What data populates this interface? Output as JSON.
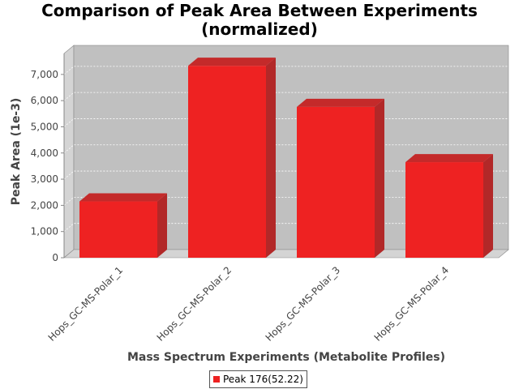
{
  "chart_data": {
    "type": "bar",
    "title_lines": [
      "Comparison of Peak Area Between Experiments",
      "(normalized)"
    ],
    "xlabel": "Mass Spectrum Experiments (Metabolite Profiles)",
    "ylabel": "Peak Area (1e-3)",
    "categories": [
      "Hops_GC-MS-Polar_1",
      "Hops_GC-MS-Polar_2",
      "Hops_GC-MS-Polar_3",
      "Hops_GC-MS-Polar_4"
    ],
    "series": [
      {
        "name": "Peak 176(52.22)",
        "values": [
          2150,
          7330,
          5760,
          3650
        ],
        "color": "#ee2222"
      }
    ],
    "yticks": [
      0,
      1000,
      2000,
      3000,
      4000,
      5000,
      6000,
      7000
    ],
    "ytick_labels": [
      "0",
      "1,000",
      "2,000",
      "3,000",
      "4,000",
      "5,000",
      "6,000",
      "7,000"
    ],
    "ylim": [
      0,
      7800
    ],
    "grid": true,
    "style": "3d",
    "legend_position": "bottom",
    "colors": {
      "plot_background": "#c0c0c0",
      "bar": "#ee2222",
      "bar_top": "#c42a2a",
      "bar_side": "#b22828"
    }
  }
}
